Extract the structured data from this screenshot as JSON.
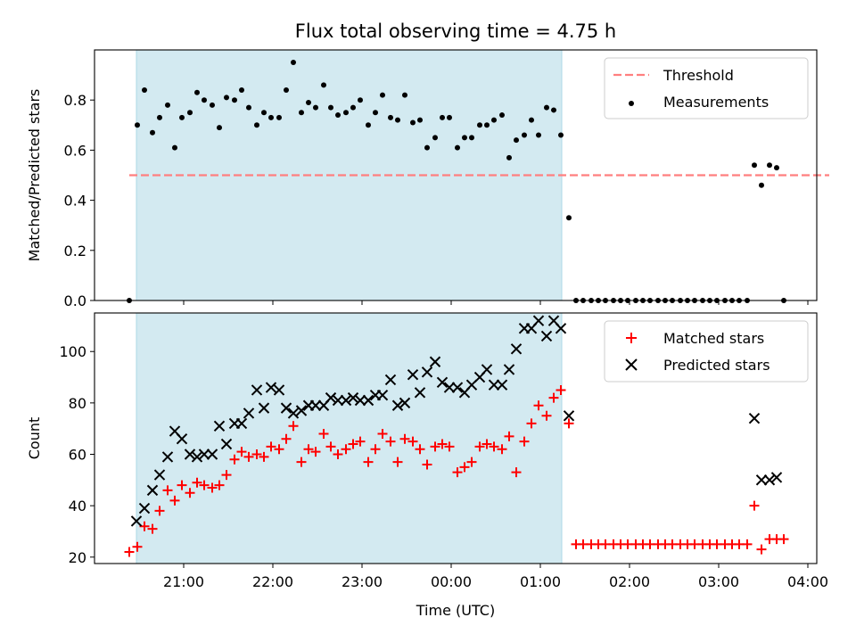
{
  "figure_title": "Flux total observing time = 4.75 h",
  "chart_data": [
    {
      "type": "scatter",
      "ylabel": "Matched/Predicted stars",
      "xlabel": "",
      "xlim_hours": [
        20.0,
        28.1
      ],
      "ylim": [
        0,
        1.0
      ],
      "yticks": [
        0.0,
        0.2,
        0.4,
        0.6,
        0.8
      ],
      "ytick_labels": [
        "0.0",
        "0.2",
        "0.4",
        "0.6",
        "0.8"
      ],
      "shaded_span_hours": [
        20.47,
        25.24
      ],
      "shaded_color": "#d3eaf1",
      "threshold": {
        "name": "Threshold",
        "value": 0.5,
        "x_start": 20.39,
        "x_end": 28.24,
        "color": "#ff7f7f",
        "style": "dashed"
      },
      "legend_position": "upper right",
      "series": [
        {
          "name": "Measurements",
          "color": "#000000",
          "marker": "dot",
          "x": [
            20.39,
            20.48,
            20.56,
            20.65,
            20.73,
            20.82,
            20.9,
            20.98,
            21.07,
            21.15,
            21.23,
            21.32,
            21.4,
            21.48,
            21.57,
            21.65,
            21.73,
            21.82,
            21.9,
            21.98,
            22.07,
            22.15,
            22.23,
            22.32,
            22.4,
            22.48,
            22.57,
            22.65,
            22.73,
            22.82,
            22.9,
            22.98,
            23.07,
            23.15,
            23.23,
            23.32,
            23.4,
            23.48,
            23.57,
            23.65,
            23.73,
            23.82,
            23.9,
            23.98,
            24.07,
            24.15,
            24.23,
            24.32,
            24.4,
            24.48,
            24.57,
            24.65,
            24.73,
            24.82,
            24.9,
            24.98,
            25.07,
            25.15,
            25.23,
            25.32,
            25.4,
            25.48,
            25.57,
            25.65,
            25.73,
            25.82,
            25.9,
            25.98,
            26.07,
            26.15,
            26.23,
            26.32,
            26.4,
            26.48,
            26.57,
            26.65,
            26.73,
            26.82,
            26.9,
            26.98,
            27.07,
            27.15,
            27.23,
            27.32,
            27.4,
            27.48,
            27.57,
            27.65,
            27.73
          ],
          "y": [
            0.0,
            0.7,
            0.84,
            0.67,
            0.73,
            0.78,
            0.61,
            0.73,
            0.75,
            0.83,
            0.8,
            0.78,
            0.69,
            0.81,
            0.8,
            0.84,
            0.77,
            0.7,
            0.75,
            0.73,
            0.73,
            0.84,
            0.95,
            0.75,
            0.79,
            0.77,
            0.86,
            0.77,
            0.74,
            0.75,
            0.77,
            0.8,
            0.7,
            0.75,
            0.82,
            0.73,
            0.72,
            0.82,
            0.71,
            0.72,
            0.61,
            0.65,
            0.73,
            0.73,
            0.61,
            0.65,
            0.65,
            0.7,
            0.7,
            0.72,
            0.74,
            0.57,
            0.64,
            0.66,
            0.72,
            0.66,
            0.77,
            0.76,
            0.66,
            0.33,
            0.0,
            0.0,
            0.0,
            0.0,
            0.0,
            0.0,
            0.0,
            0.0,
            0.0,
            0.0,
            0.0,
            0.0,
            0.0,
            0.0,
            0.0,
            0.0,
            0.0,
            0.0,
            0.0,
            0.0,
            0.0,
            0.0,
            0.0,
            0.0,
            0.54,
            0.46,
            0.54,
            0.53,
            0.0
          ]
        }
      ]
    },
    {
      "type": "scatter",
      "ylabel": "Count",
      "xlabel": "Time (UTC)",
      "xlim_hours": [
        20.0,
        28.1
      ],
      "ylim": [
        17.5,
        115
      ],
      "yticks": [
        20,
        40,
        60,
        80,
        100
      ],
      "ytick_labels": [
        "20",
        "40",
        "60",
        "80",
        "100"
      ],
      "xticks_hours": [
        21,
        22,
        23,
        24,
        25,
        26,
        27,
        28
      ],
      "xtick_labels": [
        "21:00",
        "22:00",
        "23:00",
        "00:00",
        "01:00",
        "02:00",
        "03:00",
        "04:00"
      ],
      "shaded_span_hours": [
        20.47,
        25.24
      ],
      "legend_position": "upper right",
      "series": [
        {
          "name": "Matched stars",
          "color": "#ff0000",
          "marker": "plus",
          "x": [
            20.39,
            20.48,
            20.56,
            20.65,
            20.73,
            20.82,
            20.9,
            20.98,
            21.07,
            21.15,
            21.23,
            21.32,
            21.4,
            21.48,
            21.57,
            21.65,
            21.73,
            21.82,
            21.9,
            21.98,
            22.07,
            22.15,
            22.23,
            22.32,
            22.4,
            22.48,
            22.57,
            22.65,
            22.73,
            22.82,
            22.9,
            22.98,
            23.07,
            23.15,
            23.23,
            23.32,
            23.4,
            23.48,
            23.57,
            23.65,
            23.73,
            23.82,
            23.9,
            23.98,
            24.07,
            24.15,
            24.23,
            24.32,
            24.4,
            24.48,
            24.57,
            24.65,
            24.73,
            24.82,
            24.9,
            24.98,
            25.07,
            25.15,
            25.23,
            25.32,
            25.4,
            25.48,
            25.57,
            25.65,
            25.73,
            25.82,
            25.9,
            25.98,
            26.07,
            26.15,
            26.23,
            26.32,
            26.4,
            26.48,
            26.57,
            26.65,
            26.73,
            26.82,
            26.9,
            26.98,
            27.07,
            27.15,
            27.23,
            27.32,
            27.4,
            27.48,
            27.57,
            27.65,
            27.73
          ],
          "y": [
            22,
            24,
            32,
            31,
            38,
            46,
            42,
            48,
            45,
            49,
            48,
            47,
            48,
            52,
            58,
            61,
            59,
            60,
            59,
            63,
            62,
            66,
            71,
            57,
            62,
            61,
            68,
            63,
            60,
            62,
            64,
            65,
            57,
            62,
            68,
            65,
            57,
            66,
            65,
            62,
            56,
            63,
            64,
            63,
            53,
            55,
            57,
            63,
            64,
            63,
            62,
            67,
            53,
            65,
            72,
            79,
            75,
            82,
            85,
            72,
            25,
            25,
            25,
            25,
            25,
            25,
            25,
            25,
            25,
            25,
            25,
            25,
            25,
            25,
            25,
            25,
            25,
            25,
            25,
            25,
            25,
            25,
            25,
            25,
            40,
            23,
            27,
            27,
            27
          ]
        },
        {
          "name": "Predicted stars",
          "color": "#000000",
          "marker": "cross",
          "x": [
            20.47,
            20.56,
            20.65,
            20.73,
            20.82,
            20.9,
            20.98,
            21.07,
            21.15,
            21.23,
            21.32,
            21.4,
            21.48,
            21.57,
            21.65,
            21.73,
            21.82,
            21.9,
            21.98,
            22.07,
            22.15,
            22.23,
            22.32,
            22.4,
            22.48,
            22.57,
            22.65,
            22.73,
            22.82,
            22.9,
            22.98,
            23.07,
            23.15,
            23.23,
            23.32,
            23.4,
            23.48,
            23.57,
            23.65,
            23.73,
            23.82,
            23.9,
            23.98,
            24.07,
            24.15,
            24.23,
            24.32,
            24.4,
            24.48,
            24.57,
            24.65,
            24.73,
            24.82,
            24.9,
            24.98,
            25.07,
            25.15,
            25.23,
            25.32,
            27.4,
            27.48,
            27.57,
            27.65
          ],
          "y": [
            34,
            39,
            46,
            52,
            59,
            69,
            66,
            60,
            59,
            60,
            60,
            71,
            64,
            72,
            72,
            76,
            85,
            78,
            86,
            85,
            78,
            76,
            77,
            79,
            79,
            79,
            82,
            81,
            81,
            82,
            81,
            81,
            83,
            83,
            89,
            79,
            80,
            91,
            84,
            92,
            96,
            88,
            86,
            86,
            84,
            87,
            90,
            93,
            87,
            87,
            93,
            101,
            109,
            109,
            112,
            106,
            112,
            109,
            75,
            74,
            50,
            50,
            51
          ]
        }
      ]
    }
  ]
}
